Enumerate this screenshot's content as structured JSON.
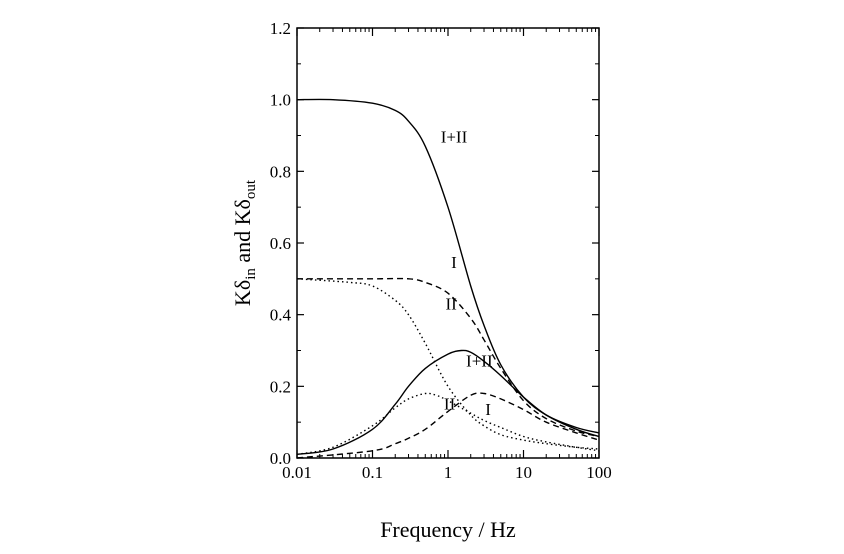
{
  "chart_data": {
    "type": "line",
    "xlabel": "Frequency / Hz",
    "ylabel": {
      "base1": "Kδ",
      "sub1": "in",
      "mid": " and ",
      "base2": "Kδ",
      "sub2": "out"
    },
    "xscale": "log",
    "xlim": [
      0.01,
      100
    ],
    "ylim": [
      0.0,
      1.2
    ],
    "xticks": [
      0.01,
      0.1,
      1,
      10,
      100
    ],
    "xtick_labels": [
      "0.01",
      "0.1",
      "1",
      "10",
      "100"
    ],
    "yticks": [
      0.0,
      0.2,
      0.4,
      0.6,
      0.8,
      1.0,
      1.2
    ],
    "ytick_labels": [
      "0.0",
      "0.2",
      "0.4",
      "0.6",
      "0.8",
      "1.0",
      "1.2"
    ],
    "grid": false,
    "series": [
      {
        "name": "I+II",
        "style": "solid",
        "group": "in",
        "x": [
          0.01,
          0.03,
          0.1,
          0.2,
          0.3,
          0.5,
          1,
          2,
          3,
          5,
          10,
          20,
          50,
          100
        ],
        "y": [
          1.0,
          1.0,
          0.99,
          0.97,
          0.94,
          0.87,
          0.7,
          0.48,
          0.37,
          0.26,
          0.17,
          0.12,
          0.085,
          0.07
        ]
      },
      {
        "name": "I",
        "style": "dashed",
        "group": "in",
        "x": [
          0.01,
          0.1,
          0.3,
          0.5,
          1,
          2,
          3,
          5,
          10,
          20,
          50,
          100
        ],
        "y": [
          0.5,
          0.5,
          0.5,
          0.49,
          0.46,
          0.39,
          0.33,
          0.25,
          0.16,
          0.11,
          0.075,
          0.06
        ]
      },
      {
        "name": "II",
        "style": "dotted",
        "group": "in",
        "x": [
          0.01,
          0.05,
          0.1,
          0.2,
          0.3,
          0.5,
          1,
          2,
          3,
          5,
          10,
          20,
          50,
          100
        ],
        "y": [
          0.5,
          0.49,
          0.48,
          0.44,
          0.4,
          0.32,
          0.2,
          0.12,
          0.09,
          0.065,
          0.05,
          0.04,
          0.03,
          0.025
        ]
      },
      {
        "name": "I+II",
        "style": "solid",
        "group": "out",
        "x": [
          0.01,
          0.03,
          0.1,
          0.2,
          0.3,
          0.5,
          1,
          1.5,
          2,
          3,
          5,
          10,
          20,
          50,
          100
        ],
        "y": [
          0.01,
          0.025,
          0.08,
          0.15,
          0.2,
          0.25,
          0.29,
          0.3,
          0.295,
          0.27,
          0.23,
          0.17,
          0.12,
          0.08,
          0.06
        ]
      },
      {
        "name": "I",
        "style": "dashed",
        "group": "out",
        "x": [
          0.01,
          0.1,
          0.2,
          0.3,
          0.5,
          1,
          2,
          3,
          5,
          10,
          20,
          50,
          100
        ],
        "y": [
          0.0,
          0.02,
          0.04,
          0.055,
          0.08,
          0.13,
          0.175,
          0.18,
          0.165,
          0.135,
          0.1,
          0.07,
          0.05
        ]
      },
      {
        "name": "II",
        "style": "dotted",
        "group": "out",
        "x": [
          0.01,
          0.03,
          0.1,
          0.2,
          0.3,
          0.5,
          0.7,
          1,
          2,
          3,
          5,
          10,
          20,
          50,
          100
        ],
        "y": [
          0.01,
          0.03,
          0.09,
          0.14,
          0.165,
          0.18,
          0.175,
          0.16,
          0.125,
          0.105,
          0.085,
          0.06,
          0.045,
          0.03,
          0.02
        ]
      }
    ],
    "annotations": [
      {
        "text": "I+II",
        "x": 1.2,
        "y": 0.88
      },
      {
        "text": "I",
        "x": 1.2,
        "y": 0.53
      },
      {
        "text": "II",
        "x": 1.1,
        "y": 0.415
      },
      {
        "text": "I+II",
        "x": 2.6,
        "y": 0.255
      },
      {
        "text": "II",
        "x": 1.05,
        "y": 0.135
      },
      {
        "text": "I",
        "x": 3.4,
        "y": 0.12
      }
    ]
  }
}
